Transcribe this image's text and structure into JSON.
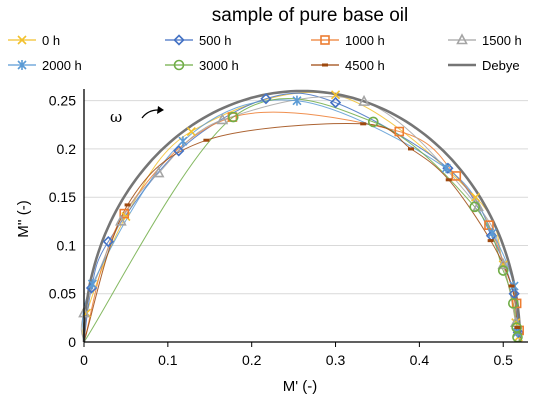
{
  "chart_data": {
    "type": "line",
    "title": "sample of pure base oil",
    "xlabel": "M' (-)",
    "ylabel": "M'' (-)",
    "xlim": [
      0,
      0.52
    ],
    "ylim": [
      0,
      0.26
    ],
    "xticks": [
      "0",
      "0.1",
      "0.2",
      "0.3",
      "0.4",
      "0.5"
    ],
    "yticks": [
      "0",
      "0.05",
      "0.1",
      "0.15",
      "0.2",
      "0.25"
    ],
    "annotation": "ω",
    "legend_position": "top",
    "colors": {
      "0 h": "#f2c12e",
      "500 h": "#4472c4",
      "1000 h": "#ed7d31",
      "1500 h": "#a5a5a5",
      "2000 h": "#5b9bd5",
      "3000 h": "#70ad47",
      "4500 h": "#9e480e",
      "Debye": "#757575"
    },
    "series": [
      {
        "name": "0 h",
        "marker": "x",
        "x": [
          0.003,
          0.05,
          0.128,
          0.3,
          0.467,
          0.5,
          0.515,
          0.518
        ],
        "y": [
          0.03,
          0.13,
          0.218,
          0.256,
          0.15,
          0.08,
          0.02,
          0.005
        ]
      },
      {
        "name": "500 h",
        "marker": "diamond",
        "x": [
          0.009,
          0.029,
          0.113,
          0.217,
          0.3,
          0.434,
          0.486,
          0.513,
          0.518
        ],
        "y": [
          0.056,
          0.104,
          0.198,
          0.252,
          0.248,
          0.18,
          0.11,
          0.05,
          0.01
        ]
      },
      {
        "name": "1000 h",
        "marker": "square",
        "x": [
          0.048,
          0.177,
          0.376,
          0.444,
          0.483,
          0.516,
          0.519
        ],
        "y": [
          0.133,
          0.233,
          0.218,
          0.172,
          0.121,
          0.04,
          0.012
        ]
      },
      {
        "name": "1500 h",
        "marker": "triangle",
        "x": [
          0.0,
          0.044,
          0.089,
          0.165,
          0.334,
          0.47,
          0.5,
          0.515
        ],
        "y": [
          0.03,
          0.125,
          0.175,
          0.23,
          0.249,
          0.14,
          0.08,
          0.02
        ]
      },
      {
        "name": "2000 h",
        "marker": "asterisk",
        "x": [
          0.01,
          0.118,
          0.254,
          0.432,
          0.487,
          0.513,
          0.517
        ],
        "y": [
          0.06,
          0.208,
          0.25,
          0.18,
          0.113,
          0.058,
          0.01
        ]
      },
      {
        "name": "3000 h",
        "marker": "circle",
        "x": [
          0.178,
          0.345,
          0.466,
          0.5,
          0.512,
          0.516,
          0.517
        ],
        "y": [
          0.233,
          0.228,
          0.14,
          0.074,
          0.04,
          0.015,
          0.005
        ]
      },
      {
        "name": "4500 h",
        "marker": "dash",
        "x": [
          0.052,
          0.146,
          0.333,
          0.39,
          0.435,
          0.485,
          0.51,
          0.517
        ],
        "y": [
          0.142,
          0.209,
          0.226,
          0.2,
          0.168,
          0.105,
          0.058,
          0.015
        ]
      },
      {
        "name": "Debye",
        "marker": "none",
        "x": [
          0.0,
          0.52
        ],
        "y": [
          0.0,
          0.0
        ]
      }
    ]
  }
}
